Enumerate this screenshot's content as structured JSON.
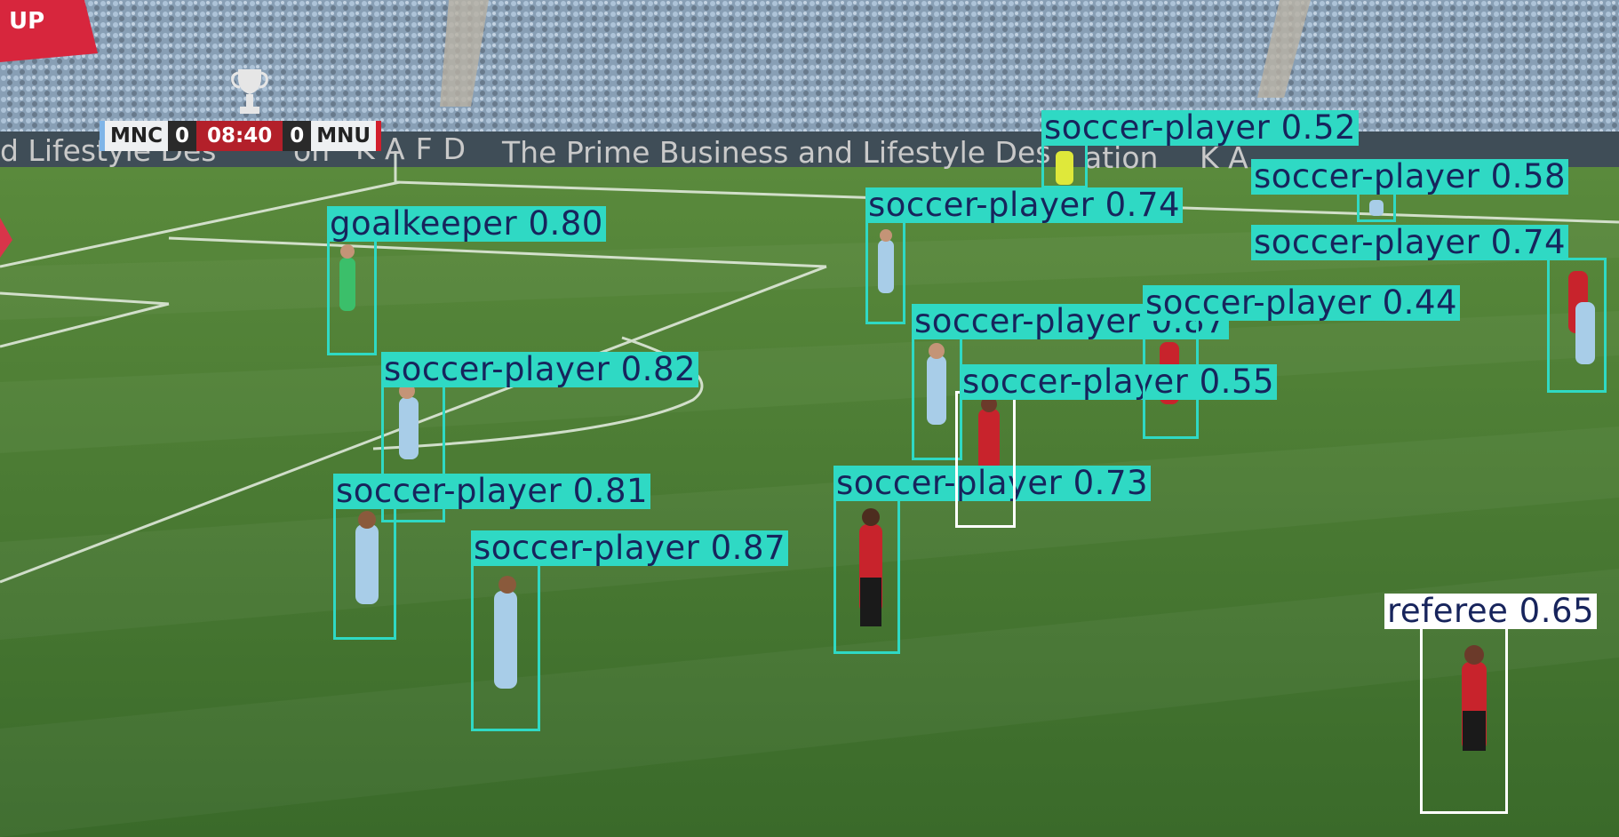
{
  "scoreboard": {
    "home_team": "MNC",
    "home_score": "0",
    "clock": "08:40",
    "away_score": "0",
    "away_team": "MNU"
  },
  "banner": {
    "cup_text": "UP"
  },
  "advertising_boards": {
    "left": "d Lifestyle Des",
    "left_tail": "on",
    "kafd": "KAFD",
    "main": "The Prime Business and Lifestyle Des",
    "main_tail": "ation",
    "right_fragment": "K A"
  },
  "detections": [
    {
      "class_label": "goalkeeper",
      "confidence": "0.80",
      "color": "#2fd9c4"
    },
    {
      "class_label": "soccer-player",
      "confidence": "0.82",
      "color": "#2fd9c4"
    },
    {
      "class_label": "soccer-player",
      "confidence": "0.81",
      "color": "#2fd9c4"
    },
    {
      "class_label": "soccer-player",
      "confidence": "0.87",
      "color": "#2fd9c4"
    },
    {
      "class_label": "soccer-player",
      "confidence": "0.73",
      "color": "#2fd9c4"
    },
    {
      "class_label": "soccer-player",
      "confidence": "0.74",
      "color": "#2fd9c4"
    },
    {
      "class_label": "soccer-player",
      "confidence": "0.52",
      "color": "#2fd9c4"
    },
    {
      "class_label": "soccer-player",
      "confidence": "0.87",
      "color": "#2fd9c4"
    },
    {
      "class_label": "soccer-player",
      "confidence": "0.55",
      "color": "#2fd9c4"
    },
    {
      "class_label": "soccer-player",
      "confidence": "0.44",
      "color": "#2fd9c4"
    },
    {
      "class_label": "soccer-player",
      "confidence": "0.58",
      "color": "#2fd9c4"
    },
    {
      "class_label": "soccer-player",
      "confidence": "0.74",
      "color": "#2fd9c4"
    },
    {
      "class_label": "referee",
      "confidence": "0.65",
      "color": "#ffffff"
    }
  ],
  "label_separator": " ",
  "colors": {
    "box_player": "#2fd9c4",
    "box_referee": "#ffffff",
    "label_text": "#17245c",
    "pitch": "#3d6a2e",
    "home_kit": "#a8cde8",
    "away_kit": "#c8232c",
    "scoreboard_clock": "#b3202a"
  }
}
